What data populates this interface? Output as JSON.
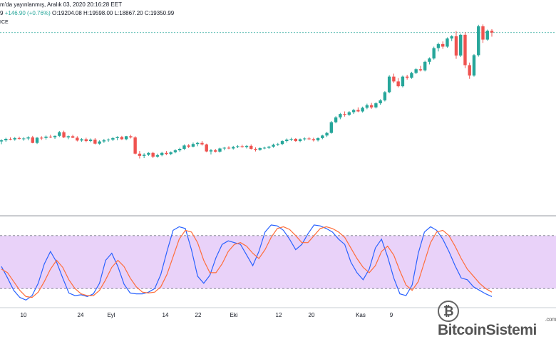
{
  "header": {
    "line1": "m'da yayınlanmış, Aralık 03, 2020 20:16:28 EET",
    "line2_prefix": "9",
    "change": "+146.90 (+0.76%)",
    "ohlc": "O:19204.08 H:19598.00 L:18867.20 C:19350.99",
    "line3": "ICE"
  },
  "watermark": {
    "brand": "BitcoinSistemi",
    "domain": ".com",
    "icon": "bitcoin-b-icon"
  },
  "colors": {
    "up": "#26a69a",
    "down": "#ef5350",
    "band": "#e2c3f7",
    "k_line": "#2962ff",
    "d_line": "#ff6d3a",
    "price_line": "#26a69a"
  },
  "chart_data": [
    {
      "type": "candlestick",
      "title": "",
      "xlabel": "",
      "ylabel": "",
      "x_ticks": [
        "10",
        "24",
        "Eyl",
        "14",
        "22",
        "Eki",
        "12",
        "20",
        "Kas",
        "9"
      ],
      "note": "approximate daily OHLC values in chart-relative units (0 = bottom of price pane, 100 = top)",
      "ylim": [
        0,
        100
      ],
      "candles": [
        [
          39.0,
          40.2,
          37.5,
          39.6
        ],
        [
          39.6,
          41.0,
          38.8,
          40.4
        ],
        [
          40.4,
          41.2,
          39.6,
          40.1
        ],
        [
          40.1,
          41.4,
          39.4,
          40.8
        ],
        [
          40.8,
          41.6,
          40.0,
          40.5
        ],
        [
          40.5,
          41.3,
          39.4,
          40.6
        ],
        [
          40.6,
          41.8,
          39.6,
          41.2
        ],
        [
          41.2,
          42.0,
          38.0,
          38.2
        ],
        [
          38.2,
          41.4,
          37.6,
          41.0
        ],
        [
          41.0,
          41.8,
          39.8,
          40.9
        ],
        [
          40.9,
          42.2,
          40.0,
          41.6
        ],
        [
          41.6,
          42.6,
          40.8,
          41.3
        ],
        [
          41.3,
          42.2,
          40.4,
          42.0
        ],
        [
          42.0,
          44.6,
          41.4,
          44.0
        ],
        [
          44.0,
          44.8,
          40.8,
          41.2
        ],
        [
          41.2,
          42.2,
          40.2,
          41.8
        ],
        [
          41.8,
          42.6,
          40.8,
          41.0
        ],
        [
          41.0,
          41.8,
          39.0,
          39.5
        ],
        [
          39.5,
          40.8,
          38.8,
          40.2
        ],
        [
          40.2,
          41.0,
          38.6,
          39.2
        ],
        [
          39.2,
          40.6,
          38.6,
          40.0
        ],
        [
          40.0,
          40.8,
          37.4,
          37.8
        ],
        [
          37.8,
          39.6,
          37.2,
          39.0
        ],
        [
          39.0,
          40.4,
          38.2,
          39.6
        ],
        [
          39.6,
          40.6,
          38.8,
          40.0
        ],
        [
          40.0,
          41.4,
          39.2,
          40.8
        ],
        [
          40.8,
          41.8,
          39.6,
          41.4
        ],
        [
          41.4,
          42.0,
          39.8,
          40.2
        ],
        [
          40.2,
          42.0,
          39.6,
          41.8
        ],
        [
          41.8,
          42.6,
          40.6,
          41.2
        ],
        [
          41.2,
          41.8,
          32.0,
          32.4
        ],
        [
          32.4,
          33.8,
          29.8,
          31.2
        ],
        [
          31.2,
          32.6,
          30.0,
          31.8
        ],
        [
          31.8,
          33.2,
          31.2,
          32.8
        ],
        [
          32.8,
          33.4,
          30.0,
          30.8
        ],
        [
          30.8,
          32.4,
          30.2,
          31.6
        ],
        [
          31.6,
          33.4,
          31.0,
          32.8
        ],
        [
          32.8,
          33.8,
          31.6,
          32.2
        ],
        [
          32.2,
          33.6,
          31.6,
          33.2
        ],
        [
          33.2,
          34.8,
          32.6,
          34.2
        ],
        [
          34.2,
          35.6,
          33.4,
          35.0
        ],
        [
          35.0,
          37.4,
          34.4,
          36.8
        ],
        [
          36.8,
          37.6,
          35.4,
          36.2
        ],
        [
          36.2,
          38.4,
          35.8,
          37.6
        ],
        [
          37.6,
          38.8,
          36.4,
          38.2
        ],
        [
          38.2,
          39.2,
          36.8,
          37.4
        ],
        [
          37.4,
          37.8,
          33.2,
          33.6
        ],
        [
          33.6,
          35.0,
          32.0,
          34.2
        ],
        [
          34.2,
          35.0,
          33.0,
          33.5
        ],
        [
          33.5,
          35.6,
          33.0,
          35.2
        ],
        [
          35.2,
          36.0,
          34.2,
          35.6
        ],
        [
          35.6,
          36.4,
          34.8,
          35.2
        ],
        [
          35.2,
          36.6,
          34.6,
          36.0
        ],
        [
          36.0,
          37.0,
          35.4,
          36.4
        ],
        [
          36.4,
          37.2,
          35.6,
          36.0
        ],
        [
          36.0,
          37.0,
          35.2,
          36.6
        ],
        [
          36.6,
          37.4,
          34.6,
          35.0
        ],
        [
          35.0,
          35.8,
          33.6,
          34.4
        ],
        [
          34.4,
          35.8,
          34.0,
          35.4
        ],
        [
          35.4,
          36.2,
          34.8,
          35.6
        ],
        [
          35.6,
          36.6,
          35.0,
          36.2
        ],
        [
          36.2,
          37.8,
          35.6,
          37.2
        ],
        [
          37.2,
          38.2,
          36.6,
          37.6
        ],
        [
          37.6,
          39.6,
          37.0,
          39.2
        ],
        [
          39.2,
          40.6,
          38.4,
          40.0
        ],
        [
          40.0,
          41.0,
          39.2,
          40.4
        ],
        [
          40.4,
          40.8,
          38.8,
          39.2
        ],
        [
          39.2,
          40.6,
          38.6,
          40.2
        ],
        [
          40.2,
          41.2,
          39.4,
          40.6
        ],
        [
          40.6,
          41.4,
          39.8,
          40.2
        ],
        [
          40.2,
          41.0,
          39.0,
          39.6
        ],
        [
          39.6,
          41.2,
          39.0,
          40.8
        ],
        [
          40.8,
          42.6,
          40.2,
          42.2
        ],
        [
          42.2,
          44.2,
          41.4,
          43.6
        ],
        [
          43.6,
          50.0,
          43.2,
          49.4
        ],
        [
          49.4,
          52.6,
          48.8,
          52.0
        ],
        [
          52.0,
          54.4,
          51.0,
          53.8
        ],
        [
          53.8,
          55.2,
          52.4,
          53.4
        ],
        [
          53.4,
          55.4,
          52.8,
          54.8
        ],
        [
          54.8,
          56.6,
          53.8,
          56.0
        ],
        [
          56.0,
          57.4,
          54.8,
          55.2
        ],
        [
          55.2,
          57.8,
          54.6,
          57.2
        ],
        [
          57.2,
          59.4,
          56.4,
          58.6
        ],
        [
          58.6,
          59.8,
          56.6,
          57.4
        ],
        [
          57.4,
          60.2,
          56.8,
          59.6
        ],
        [
          59.6,
          61.8,
          58.8,
          61.2
        ],
        [
          61.2,
          66.2,
          60.6,
          65.6
        ],
        [
          65.6,
          74.8,
          65.0,
          74.0
        ],
        [
          74.0,
          75.6,
          70.6,
          71.4
        ],
        [
          71.4,
          73.2,
          68.2,
          68.8
        ],
        [
          68.8,
          74.6,
          68.2,
          74.0
        ],
        [
          74.0,
          75.0,
          72.4,
          73.4
        ],
        [
          73.4,
          76.6,
          72.8,
          76.0
        ],
        [
          76.0,
          78.6,
          75.4,
          78.0
        ],
        [
          78.0,
          79.8,
          76.8,
          77.4
        ],
        [
          77.4,
          82.6,
          76.8,
          82.0
        ],
        [
          82.0,
          84.4,
          80.6,
          83.8
        ],
        [
          83.8,
          90.2,
          83.2,
          89.4
        ],
        [
          89.4,
          92.4,
          87.6,
          91.6
        ],
        [
          91.6,
          93.0,
          89.0,
          90.2
        ],
        [
          90.2,
          95.2,
          89.6,
          94.6
        ],
        [
          94.6,
          96.4,
          93.2,
          95.8
        ],
        [
          95.8,
          98.6,
          83.6,
          85.4
        ],
        [
          85.4,
          97.2,
          84.6,
          96.6
        ],
        [
          96.6,
          98.0,
          78.6,
          80.2
        ],
        [
          80.2,
          81.6,
          72.8,
          74.6
        ],
        [
          74.6,
          86.2,
          74.0,
          85.6
        ],
        [
          85.6,
          102.0,
          84.8,
          101.2
        ],
        [
          101.2,
          102.2,
          92.2,
          94.0
        ],
        [
          94.0,
          99.4,
          93.4,
          98.8
        ],
        [
          98.8,
          99.6,
          95.6,
          97.8
        ]
      ]
    },
    {
      "type": "line",
      "title": "",
      "xlabel": "",
      "ylabel": "",
      "ylim": [
        0,
        100
      ],
      "band": [
        20,
        80
      ],
      "series": [
        {
          "values": [
            45,
            32,
            18,
            10,
            7,
            12,
            26,
            48,
            62,
            50,
            32,
            15,
            12,
            13,
            11,
            14,
            26,
            52,
            60,
            45,
            25,
            15,
            14,
            14,
            16,
            20,
            36,
            62,
            86,
            90,
            88,
            64,
            34,
            26,
            35,
            55,
            70,
            74,
            72,
            70,
            58,
            46,
            62,
            84,
            92,
            91,
            86,
            76,
            64,
            70,
            82,
            92,
            91,
            88,
            84,
            76,
            70,
            50,
            38,
            30,
            42,
            66,
            76,
            56,
            32,
            14,
            12,
            24,
            60,
            84,
            90,
            86,
            76,
            62,
            46,
            32,
            30,
            22,
            18,
            14,
            11
          ]
        },
        {
          "values": [
            42,
            38,
            28,
            18,
            11,
            10,
            16,
            28,
            42,
            52,
            44,
            30,
            20,
            14,
            12,
            12,
            18,
            30,
            44,
            52,
            45,
            32,
            22,
            16,
            15,
            16,
            22,
            36,
            56,
            76,
            86,
            84,
            72,
            52,
            38,
            38,
            48,
            62,
            70,
            72,
            68,
            60,
            54,
            64,
            78,
            88,
            90,
            87,
            80,
            72,
            72,
            80,
            88,
            90,
            88,
            84,
            78,
            66,
            54,
            44,
            38,
            46,
            62,
            68,
            58,
            40,
            24,
            18,
            28,
            50,
            72,
            84,
            86,
            80,
            68,
            54,
            42,
            34,
            26,
            20,
            16
          ]
        }
      ]
    }
  ]
}
